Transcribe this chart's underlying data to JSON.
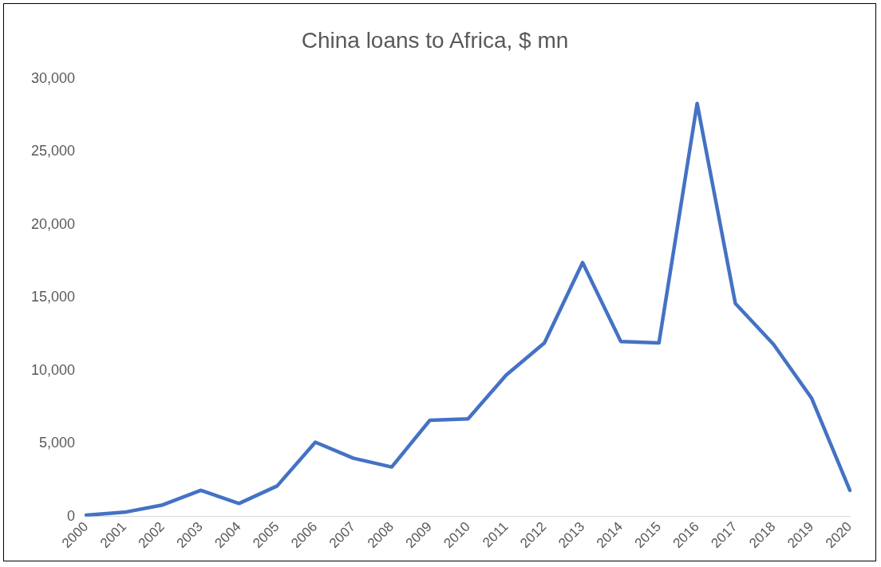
{
  "chart_data": {
    "type": "line",
    "title": "China loans to Africa, $ mn",
    "categories": [
      "2000",
      "2001",
      "2002",
      "2003",
      "2004",
      "2005",
      "2006",
      "2007",
      "2008",
      "2009",
      "2010",
      "2011",
      "2012",
      "2013",
      "2014",
      "2015",
      "2016",
      "2017",
      "2018",
      "2019",
      "2020"
    ],
    "series": [
      {
        "color": "#4472c4",
        "values": [
          100,
          300,
          800,
          1800,
          900,
          2100,
          5100,
          4000,
          3400,
          6600,
          6700,
          9700,
          11900,
          17400,
          12000,
          11900,
          28300,
          14600,
          11800,
          8100,
          1800
        ]
      }
    ],
    "ylim": [
      0,
      30000
    ],
    "yticks": [
      {
        "value": 0,
        "label": "0"
      },
      {
        "value": 5000,
        "label": "5,000"
      },
      {
        "value": 10000,
        "label": "10,000"
      },
      {
        "value": 15000,
        "label": "15,000"
      },
      {
        "value": 20000,
        "label": "20,000"
      },
      {
        "value": 25000,
        "label": "25,000"
      },
      {
        "value": 30000,
        "label": "30,000"
      }
    ],
    "grid": false,
    "legend": false,
    "marker": "none",
    "line_style": "solid"
  }
}
